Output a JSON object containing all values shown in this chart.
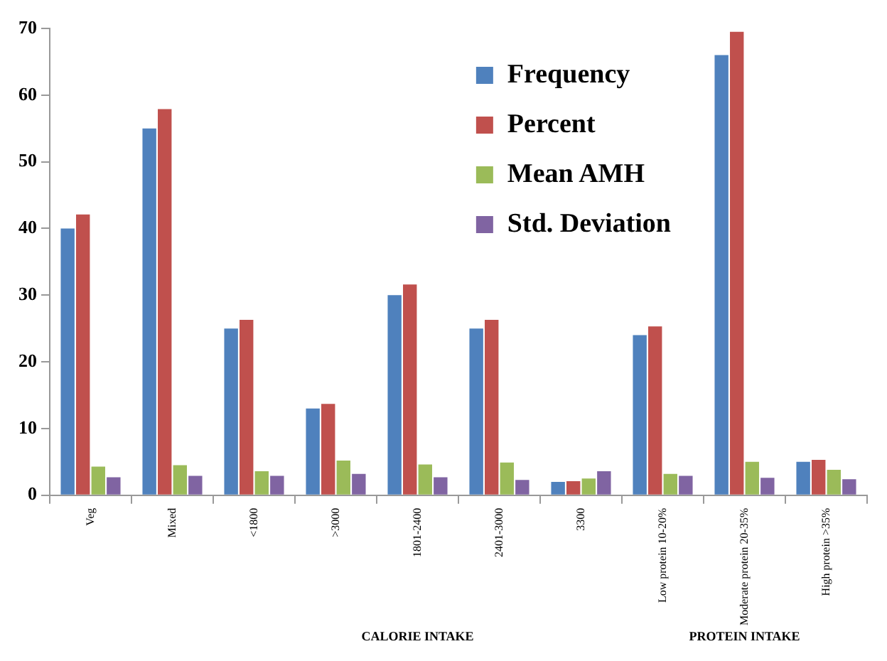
{
  "chart_data": {
    "type": "bar",
    "categories": [
      "Veg",
      "Mixed",
      "<1800",
      ">3000",
      "1801-2400",
      "2401-3000",
      "3300",
      "Low protein 10-20%",
      "Moderate protein 20-35%",
      "High protein >35%"
    ],
    "series": [
      {
        "name": "Frequency",
        "color": "#4f81bd",
        "values": [
          40,
          55,
          25,
          13,
          30,
          25,
          2,
          24,
          66,
          5
        ]
      },
      {
        "name": "Percent",
        "color": "#c0504d",
        "values": [
          42.1,
          57.9,
          26.3,
          13.7,
          31.6,
          26.3,
          2.1,
          25.3,
          69.5,
          5.3
        ]
      },
      {
        "name": "Mean AMH",
        "color": "#9bbb59",
        "values": [
          4.3,
          4.5,
          3.6,
          5.2,
          4.6,
          4.9,
          2.5,
          3.2,
          5.0,
          3.8
        ]
      },
      {
        "name": "Std. Deviation",
        "color": "#8064a2",
        "values": [
          2.7,
          2.9,
          2.9,
          3.2,
          2.7,
          2.3,
          3.6,
          2.9,
          2.6,
          2.4
        ]
      }
    ],
    "ylim": [
      0,
      70
    ],
    "yticks": [
      0,
      10,
      20,
      30,
      40,
      50,
      60,
      70
    ],
    "grid": false,
    "legend": "top right",
    "annotations": [
      "CALORIE INTAKE",
      "PROTEIN INTAKE"
    ]
  }
}
